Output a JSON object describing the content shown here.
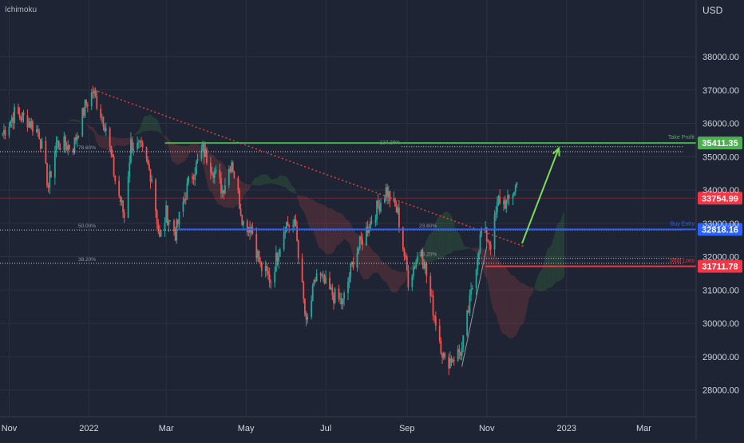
{
  "indicator_label": "Ichimoku",
  "currency": "USD",
  "colors": {
    "background": "#1e2433",
    "grid": "#2a3142",
    "up": "#26a69a",
    "down": "#ef5350",
    "take_profit": "#4caf50",
    "buy_entry": "#2962ff",
    "stop_loss": "#f23645",
    "trendline": "#e0403a",
    "arrow": "#7bdc5a",
    "fib": "#9598a1",
    "price_tag": "#f23645"
  },
  "chart_data": {
    "type": "candlestick",
    "title": "",
    "x_tick_labels": [
      "Nov",
      "2022",
      "Mar",
      "May",
      "Jul",
      "Sep",
      "Nov",
      "2023",
      "Mar"
    ],
    "y_tick_labels": [
      "38000.00",
      "37000.00",
      "36000.00",
      "35000.00",
      "34000.00",
      "33000.00",
      "32000.00",
      "31000.00",
      "30000.00",
      "29000.00",
      "28000.00"
    ],
    "y_ticks": [
      38000,
      37000,
      36000,
      35000,
      34000,
      33000,
      32000,
      31000,
      30000,
      29000,
      28000
    ],
    "ylim": [
      27200,
      39700
    ],
    "grid": true,
    "price_path": [
      [
        "2021-10-27",
        35700
      ],
      [
        "2021-11-05",
        36300
      ],
      [
        "2021-11-15",
        36100
      ],
      [
        "2021-11-24",
        35700
      ],
      [
        "2021-12-01",
        34100
      ],
      [
        "2021-12-07",
        35400
      ],
      [
        "2021-12-20",
        35300
      ],
      [
        "2021-12-29",
        36500
      ],
      [
        "2022-01-04",
        36950
      ],
      [
        "2022-01-14",
        35900
      ],
      [
        "2022-01-21",
        34300
      ],
      [
        "2022-01-28",
        33200
      ],
      [
        "2022-02-02",
        35400
      ],
      [
        "2022-02-10",
        35200
      ],
      [
        "2022-02-18",
        34400
      ],
      [
        "2022-02-24",
        32500
      ],
      [
        "2022-03-01",
        33300
      ],
      [
        "2022-03-08",
        32700
      ],
      [
        "2022-03-18",
        34200
      ],
      [
        "2022-03-29",
        35200
      ],
      [
        "2022-04-05",
        34700
      ],
      [
        "2022-04-13",
        34000
      ],
      [
        "2022-04-20",
        34900
      ],
      [
        "2022-04-29",
        33000
      ],
      [
        "2022-05-05",
        32900
      ],
      [
        "2022-05-12",
        31700
      ],
      [
        "2022-05-20",
        31300
      ],
      [
        "2022-05-31",
        33000
      ],
      [
        "2022-06-08",
        32900
      ],
      [
        "2022-06-16",
        29900
      ],
      [
        "2022-06-24",
        31500
      ],
      [
        "2022-07-05",
        30900
      ],
      [
        "2022-07-14",
        30600
      ],
      [
        "2022-07-22",
        31900
      ],
      [
        "2022-08-01",
        32800
      ],
      [
        "2022-08-16",
        34000
      ],
      [
        "2022-08-25",
        33300
      ],
      [
        "2022-09-02",
        31300
      ],
      [
        "2022-09-12",
        32300
      ],
      [
        "2022-09-19",
        30800
      ],
      [
        "2022-09-30",
        28800
      ],
      [
        "2022-10-13",
        29200
      ],
      [
        "2022-10-21",
        31100
      ],
      [
        "2022-10-28",
        32800
      ],
      [
        "2022-11-04",
        32400
      ],
      [
        "2022-11-10",
        33700
      ],
      [
        "2022-11-17",
        33600
      ],
      [
        "2022-11-24",
        34200
      ]
    ],
    "last_price": {
      "value": 33754.99,
      "label": "33754.99"
    },
    "levels": [
      {
        "name": "Take Profit",
        "value": 35411.35,
        "label": "35411.35",
        "color": "#4caf50"
      },
      {
        "name": "Buy Entry",
        "value": 32818.16,
        "label": "32818.16",
        "color": "#2962ff"
      },
      {
        "name": "Stop Loss",
        "value": 31711.78,
        "label": "31711.78",
        "color": "#f23645"
      }
    ],
    "fib_levels": [
      {
        "label": "78.60%",
        "value": 35150,
        "start": "2021-10-25",
        "end": "2023-03-31"
      },
      {
        "label": "50.00%",
        "value": 32800,
        "start": "2021-10-25",
        "end": "2023-03-31"
      },
      {
        "label": "38.20%",
        "value": 31800,
        "start": "2021-10-25",
        "end": "2023-03-31"
      },
      {
        "label": "127.20%",
        "value": 35300,
        "start": "2022-08-28",
        "end": "2023-03-31"
      },
      {
        "label": "23.60%",
        "value": 32800,
        "start": "2022-09-25",
        "end": "2023-03-31"
      },
      {
        "label": "38.20%",
        "value": 31950,
        "start": "2022-09-25",
        "end": "2023-03-31"
      }
    ],
    "trendline": {
      "from": [
        "2022-01-05",
        37000
      ],
      "to": [
        "2022-11-30",
        32300
      ]
    },
    "projection_arrow": {
      "from": [
        "2022-11-28",
        32400
      ],
      "to": [
        "2022-12-26",
        35250
      ]
    },
    "swing_line": {
      "from": [
        "2022-10-13",
        28700
      ],
      "to": [
        "2022-11-01",
        32300
      ]
    }
  }
}
